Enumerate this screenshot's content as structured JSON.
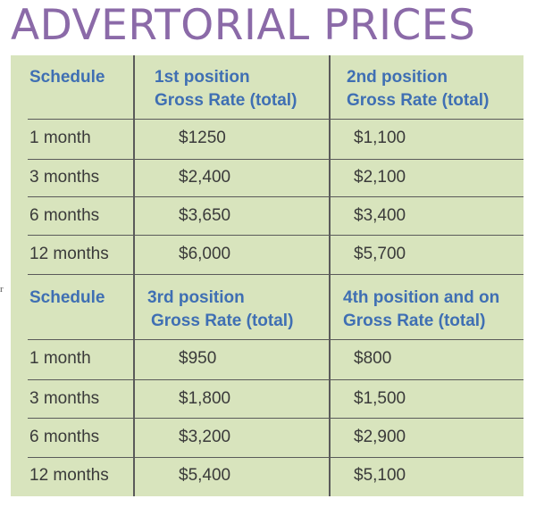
{
  "title": "ADVERTORIAL PRICES",
  "tables": [
    {
      "headers": {
        "schedule": "Schedule",
        "col1_line1": "1st position",
        "col1_line2": "Gross Rate (total)",
        "col2_line1": "2nd position",
        "col2_line2": "Gross Rate (total)"
      },
      "rows": [
        {
          "schedule": "1 month",
          "c1": "$1250",
          "c2": "$1,100"
        },
        {
          "schedule": "3 months",
          "c1": "$2,400",
          "c2": "$2,100"
        },
        {
          "schedule": "6 months",
          "c1": "$3,650",
          "c2": "$3,400"
        },
        {
          "schedule": "12 months",
          "c1": "$6,000",
          "c2": "$5,700"
        }
      ]
    },
    {
      "headers": {
        "schedule": "Schedule",
        "col1_line1": "3rd position",
        "col1_line2": "Gross Rate (total)",
        "col2_line1": "4th position and on",
        "col2_line2": "Gross Rate (total)"
      },
      "rows": [
        {
          "schedule": "1 month",
          "c1": "$950",
          "c2": "$800"
        },
        {
          "schedule": "3 months",
          "c1": "$1,800",
          "c2": "$1,500"
        },
        {
          "schedule": "6 months",
          "c1": "$3,200",
          "c2": "$2,900"
        },
        {
          "schedule": "12 months",
          "c1": "$5,400",
          "c2": "$5,100"
        }
      ]
    }
  ],
  "edge_fragments": [
    "r"
  ],
  "colors": {
    "title": "#8b6aa8",
    "panel": "#d8e4bd",
    "header_text": "#3f6fb3",
    "body_text": "#3a3a3a",
    "rule": "#5a5a5a"
  }
}
